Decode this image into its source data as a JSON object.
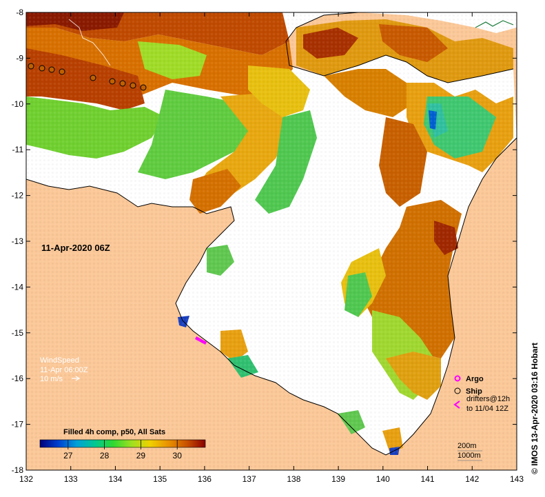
{
  "map": {
    "date_label": "11-Apr-2020 06Z",
    "product_label": "Filled 4h comp, p50, All Sats",
    "credit": "© IMOS 13-Apr-2020 03:16 Hobart",
    "x_ticks": [
      "132",
      "133",
      "134",
      "135",
      "136",
      "137",
      "138",
      "139",
      "140",
      "141",
      "142",
      "143"
    ],
    "y_ticks": [
      "-8",
      "-9",
      "-10",
      "-11",
      "-12",
      "-13",
      "-14",
      "-15",
      "-16",
      "-17",
      "-18"
    ],
    "colorbar_ticks": [
      "27",
      "28",
      "29",
      "30"
    ],
    "colorbar_stops": [
      "#00007a",
      "#0040d0",
      "#00a0d8",
      "#00c890",
      "#30d830",
      "#a0e020",
      "#f0d000",
      "#e89000",
      "#c85000",
      "#8a0000"
    ],
    "wind": {
      "title": "WindSpeed",
      "time": "11-Apr 06:00Z",
      "scale": "10 m/s"
    },
    "legend": {
      "argo": "Argo",
      "ship": "Ship",
      "drifters_line1": "drifters@12h",
      "drifters_line2": "to 11/04 12Z"
    },
    "depth_contours": {
      "shallow": "200m",
      "deep": "1000m"
    },
    "colors": {
      "land": "#fbc898",
      "no_data": "#ffffff",
      "argo": "#ff00ff",
      "frame": "#000000"
    }
  }
}
